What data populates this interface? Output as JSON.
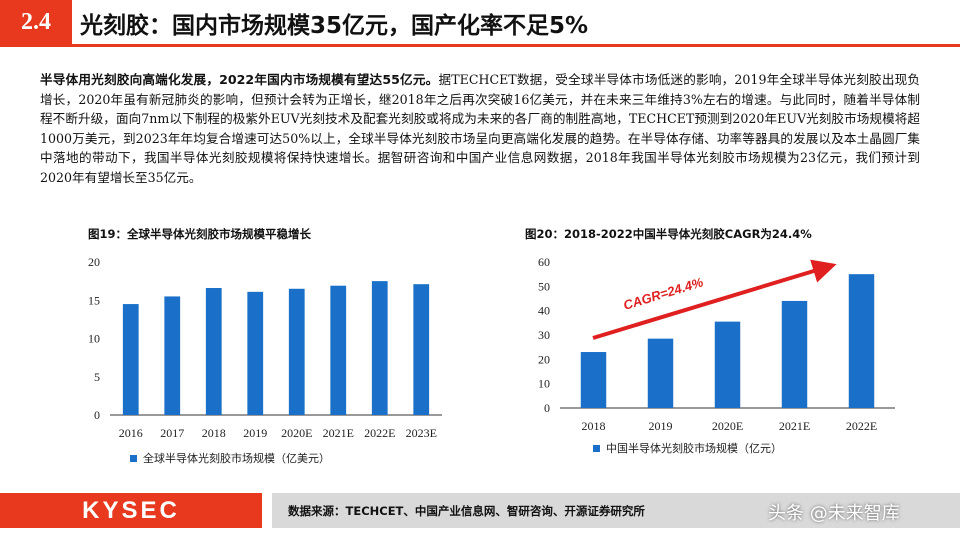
{
  "header": {
    "section_number": "2.4",
    "title": "光刻胶：国内市场规模35亿元，国产化率不足5%"
  },
  "body": {
    "lead": "半导体用光刻胶向高端化发展，2022年国内市场规模有望达55亿元。",
    "text": "据TECHCET数据，受全球半导体市场低迷的影响，2019年全球半导体光刻胶出现负增长，2020年虽有新冠肺炎的影响，但预计会转为正增长，继2018年之后再次突破16亿美元，并在未来三年维持3%左右的增速。与此同时，随着半导体制程不断升级，面向7nm以下制程的极紫外EUV光刻技术及配套光刻胶或将成为未来的各厂商的制胜高地，TECHCET预测到2020年EUV光刻胶市场规模将超1000万美元，到2023年年均复合增速可达50%以上，全球半导体光刻胶市场呈向更高端化发展的趋势。在半导体存储、功率等器具的发展以及本土晶圆厂集中落地的带动下，我国半导体光刻胶规模将保持快速增长。据智研咨询和中国产业信息网数据，2018年我国半导体光刻胶市场规模为23亿元，我们预计到2020年有望增长至35亿元。"
  },
  "colors": {
    "accent": "#e8381e",
    "bar": "#1a70c8",
    "arrow": "#e02020"
  },
  "chart_data": [
    {
      "type": "bar",
      "title": "图19：全球半导体光刻胶市场规模平稳增长",
      "categories": [
        "2016",
        "2017",
        "2018",
        "2019",
        "2020E",
        "2021E",
        "2022E",
        "2023E"
      ],
      "values": [
        14.5,
        15.5,
        16.6,
        16.1,
        16.5,
        16.9,
        17.5,
        17.1
      ],
      "ylim": [
        0,
        20
      ],
      "yticks": [
        "0",
        "5",
        "10",
        "15",
        "20"
      ],
      "legend": "全球半导体光刻胶市场规模（亿美元）",
      "legend_position": "bottom"
    },
    {
      "type": "bar",
      "title": "图20：2018-2022中国半导体光刻胶CAGR为24.4%",
      "categories": [
        "2018",
        "2019",
        "2020E",
        "2021E",
        "2022E"
      ],
      "values": [
        23,
        28.5,
        35.5,
        44,
        55
      ],
      "ylim": [
        0,
        60
      ],
      "yticks": [
        "0",
        "10",
        "20",
        "30",
        "40",
        "50",
        "60"
      ],
      "legend": "中国半导体光刻胶市场规模（亿元）",
      "legend_position": "bottom",
      "annotation": "CAGR=24.4%"
    }
  ],
  "footer": {
    "logo": "KYSEC",
    "source": "数据来源：TECHCET、中国产业信息网、智研咨询、开源证券研究所",
    "watermark": "头条 @未来智库"
  }
}
